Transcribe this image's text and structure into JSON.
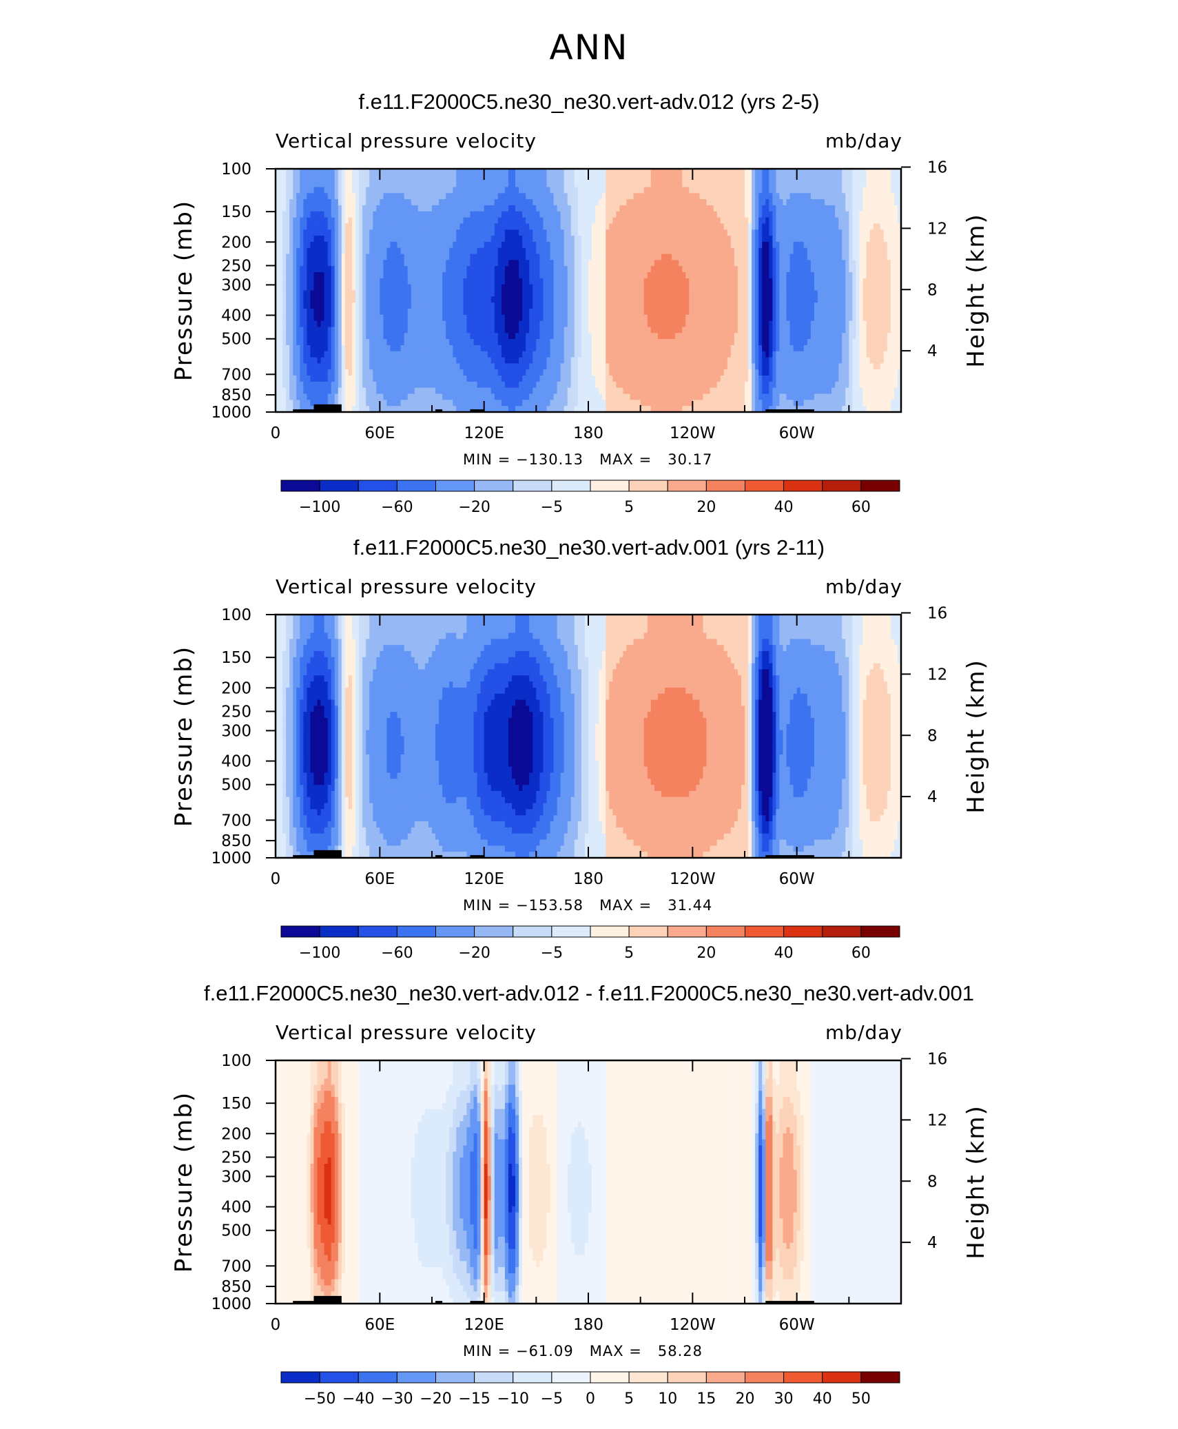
{
  "page_title": "ANN",
  "colors": {
    "neg": [
      "#0a0a96",
      "#0a2dc8",
      "#2350e6",
      "#3c73f0",
      "#6496f5",
      "#96b9f5",
      "#c8dcfa",
      "#dcebfc"
    ],
    "pos": [
      "#fff0e1",
      "#fcd2b9",
      "#faaa8c",
      "#f5825f",
      "#f05a32",
      "#dc3214",
      "#b41e0a",
      "#780000"
    ],
    "diff": [
      "#0a2dc8",
      "#2350e6",
      "#3c73f0",
      "#6496f5",
      "#96b9f5",
      "#c8dcfa",
      "#dcebfc",
      "#eef4fd",
      "#fff5eb",
      "#fde6d2",
      "#fcd2b9",
      "#faaa8c",
      "#f5825f",
      "#f05a32",
      "#dc3214",
      "#780000"
    ],
    "topo": "#000000"
  },
  "panels": [
    {
      "title": "f.e11.F2000C5.ne30_ne30.vert-adv.012 (yrs 2-5)",
      "subtitle_left": "Vertical pressure velocity",
      "subtitle_right": "mb/day",
      "min_max": "MIN = −130.13   MAX =   30.17",
      "colorbar_labels": [
        "−100",
        "−60",
        "−20",
        "−5",
        "5",
        "20",
        "40",
        "60"
      ],
      "scheme": "abs"
    },
    {
      "title": "f.e11.F2000C5.ne30_ne30.vert-adv.001 (yrs 2-11)",
      "subtitle_left": "Vertical pressure velocity",
      "subtitle_right": "mb/day",
      "min_max": "MIN = −153.58   MAX =   31.44",
      "colorbar_labels": [
        "−100",
        "−60",
        "−20",
        "−5",
        "5",
        "20",
        "40",
        "60"
      ],
      "scheme": "abs"
    },
    {
      "title": "f.e11.F2000C5.ne30_ne30.vert-adv.012 - f.e11.F2000C5.ne30_ne30.vert-adv.001",
      "subtitle_left": "Vertical pressure velocity",
      "subtitle_right": "mb/day",
      "min_max": "MIN = −61.09   MAX =   58.28",
      "colorbar_labels": [
        "−50",
        "−40",
        "−30",
        "−20",
        "−15",
        "−10",
        "−5",
        "0",
        "5",
        "10",
        "15",
        "20",
        "30",
        "40",
        "50"
      ],
      "scheme": "diff"
    }
  ],
  "chart_data": [
    {
      "type": "heatmap",
      "title": "f.e11.F2000C5.ne30_ne30.vert-adv.012 (yrs 2-5)",
      "variable": "Vertical pressure velocity",
      "units": "mb/day",
      "ylabel": "Pressure (mb)",
      "ylabel_right": "Height (km)",
      "x_ticks": [
        "0",
        "60E",
        "120E",
        "180",
        "120W",
        "60W"
      ],
      "x_range_deg": [
        0,
        360
      ],
      "y_ticks_mb": [
        100,
        150,
        200,
        250,
        300,
        400,
        500,
        700,
        850,
        1000
      ],
      "y_ticks_km": [
        16,
        12,
        8,
        4
      ],
      "y_range_mb": [
        100,
        1000
      ],
      "min": -130.13,
      "max": 30.17,
      "levels": [
        -120,
        -100,
        -80,
        -60,
        -40,
        -20,
        -10,
        -5,
        0,
        5,
        10,
        20,
        30,
        40,
        50,
        60,
        70
      ],
      "features": [
        {
          "lon": 20,
          "w": 6,
          "v": -85
        },
        {
          "lon": 30,
          "w": 5,
          "v": -70
        },
        {
          "lon": 41,
          "w": 5,
          "v": 22
        },
        {
          "lon": 68,
          "w": 12,
          "v": -45
        },
        {
          "lon": 95,
          "w": 9,
          "v": -25
        },
        {
          "lon": 115,
          "w": 10,
          "v": -60
        },
        {
          "lon": 135,
          "w": 8,
          "v": -75
        },
        {
          "lon": 150,
          "w": 12,
          "v": -55
        },
        {
          "lon": 225,
          "w": 28,
          "v": 18
        },
        {
          "lon": 282,
          "w": 4,
          "v": -120
        },
        {
          "lon": 300,
          "w": 9,
          "v": -45
        },
        {
          "lon": 320,
          "w": 8,
          "v": -30
        },
        {
          "lon": 345,
          "w": 10,
          "v": 12
        }
      ]
    },
    {
      "type": "heatmap",
      "title": "f.e11.F2000C5.ne30_ne30.vert-adv.001 (yrs 2-11)",
      "variable": "Vertical pressure velocity",
      "units": "mb/day",
      "ylabel": "Pressure (mb)",
      "ylabel_right": "Height (km)",
      "x_ticks": [
        "0",
        "60E",
        "120E",
        "180",
        "120W",
        "60W"
      ],
      "x_range_deg": [
        0,
        360
      ],
      "y_ticks_mb": [
        100,
        150,
        200,
        250,
        300,
        400,
        500,
        700,
        850,
        1000
      ],
      "y_ticks_km": [
        16,
        12,
        8,
        4
      ],
      "y_range_mb": [
        100,
        1000
      ],
      "min": -153.58,
      "max": 31.44,
      "levels": [
        -120,
        -100,
        -80,
        -60,
        -40,
        -20,
        -10,
        -5,
        0,
        5,
        10,
        20,
        30,
        40,
        50,
        60,
        70
      ],
      "features": [
        {
          "lon": 20,
          "w": 6,
          "v": -90
        },
        {
          "lon": 30,
          "w": 5,
          "v": -75
        },
        {
          "lon": 41,
          "w": 5,
          "v": 20
        },
        {
          "lon": 68,
          "w": 12,
          "v": -40
        },
        {
          "lon": 100,
          "w": 9,
          "v": -45
        },
        {
          "lon": 122,
          "w": 8,
          "v": -70
        },
        {
          "lon": 140,
          "w": 9,
          "v": -80
        },
        {
          "lon": 155,
          "w": 12,
          "v": -55
        },
        {
          "lon": 230,
          "w": 28,
          "v": 20
        },
        {
          "lon": 282,
          "w": 4,
          "v": -150
        },
        {
          "lon": 300,
          "w": 9,
          "v": -45
        },
        {
          "lon": 320,
          "w": 8,
          "v": -30
        },
        {
          "lon": 345,
          "w": 10,
          "v": 13
        }
      ]
    },
    {
      "type": "heatmap",
      "title": "f.e11.F2000C5.ne30_ne30.vert-adv.012 - f.e11.F2000C5.ne30_ne30.vert-adv.001",
      "variable": "Vertical pressure velocity",
      "units": "mb/day",
      "ylabel": "Pressure (mb)",
      "ylabel_right": "Height (km)",
      "x_ticks": [
        "0",
        "60E",
        "120E",
        "180",
        "120W",
        "60W"
      ],
      "x_range_deg": [
        0,
        360
      ],
      "y_ticks_mb": [
        100,
        150,
        200,
        250,
        300,
        400,
        500,
        700,
        850,
        1000
      ],
      "y_ticks_km": [
        16,
        12,
        8,
        4
      ],
      "y_range_mb": [
        100,
        1000
      ],
      "min": -61.09,
      "max": 58.28,
      "levels": [
        -60,
        -50,
        -40,
        -30,
        -20,
        -15,
        -10,
        -5,
        0,
        5,
        10,
        15,
        20,
        30,
        40,
        50,
        60
      ],
      "features": [
        {
          "lon": 24,
          "w": 3,
          "v": 25
        },
        {
          "lon": 30,
          "w": 3,
          "v": 35
        },
        {
          "lon": 35,
          "w": 3,
          "v": 20
        },
        {
          "lon": 88,
          "w": 10,
          "v": -8
        },
        {
          "lon": 108,
          "w": 6,
          "v": -20
        },
        {
          "lon": 116,
          "w": 3,
          "v": -30
        },
        {
          "lon": 121,
          "w": 2,
          "v": 55
        },
        {
          "lon": 127,
          "w": 3,
          "v": -25
        },
        {
          "lon": 136,
          "w": 3,
          "v": -55
        },
        {
          "lon": 152,
          "w": 8,
          "v": 8
        },
        {
          "lon": 175,
          "w": 10,
          "v": -8
        },
        {
          "lon": 220,
          "w": 25,
          "v": 5
        },
        {
          "lon": 280,
          "w": 2,
          "v": -60
        },
        {
          "lon": 283,
          "w": 2,
          "v": 45
        },
        {
          "lon": 295,
          "w": 6,
          "v": 20
        },
        {
          "lon": 330,
          "w": 15,
          "v": -5
        }
      ]
    }
  ]
}
